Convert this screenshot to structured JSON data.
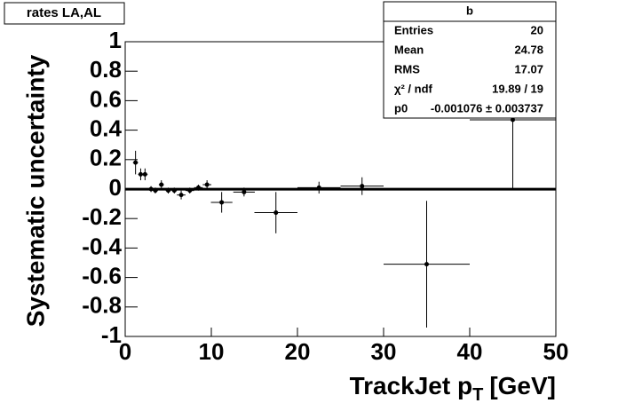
{
  "chart_data": {
    "type": "errorbar",
    "title": "rates LA,AL",
    "y_label": "Systematic uncertainty",
    "x_label": {
      "main": "TrackJet p",
      "sub": "T",
      "unit": "[GeV]"
    },
    "x": [
      1.2,
      1.8,
      2.3,
      3,
      3.5,
      4.2,
      5,
      5.7,
      6.5,
      7.5,
      8.5,
      9.5,
      11.2,
      13.8,
      17.5,
      22.5,
      27.5,
      35,
      45
    ],
    "values": [
      0.18,
      0.1,
      0.1,
      0.0,
      -0.01,
      0.03,
      -0.01,
      -0.01,
      -0.04,
      -0.01,
      0.01,
      0.03,
      -0.09,
      -0.02,
      -0.16,
      0.01,
      0.02,
      -0.51,
      0.47
    ],
    "xerr": [
      0.3,
      0.3,
      0.3,
      0.3,
      0.3,
      0.3,
      0.3,
      0.3,
      0.5,
      0.5,
      0.5,
      0.5,
      1.25,
      1.25,
      2.5,
      2.5,
      2.5,
      5,
      5
    ],
    "yerr": [
      0.08,
      0.04,
      0.04,
      0.02,
      0.02,
      0.03,
      0.02,
      0.02,
      0.03,
      0.02,
      0.02,
      0.03,
      0.07,
      0.03,
      0.14,
      0.04,
      0.06,
      0.43,
      0.47
    ],
    "color": "#000000",
    "xlim": [
      0,
      50
    ],
    "ylim": [
      -1,
      1
    ],
    "xticks": [
      0,
      10,
      20,
      30,
      40,
      50
    ],
    "yticks": [
      -1,
      -0.8,
      -0.6,
      -0.4,
      -0.2,
      0,
      0.2,
      0.4,
      0.6,
      0.8,
      1
    ],
    "stats": {
      "title": "b",
      "rows": [
        {
          "name": "Entries",
          "value": 20
        },
        {
          "name": "Mean",
          "value": 24.78
        },
        {
          "name": "RMS",
          "value": 17.07
        },
        {
          "name": "χ² / ndf",
          "value": "19.89 / 19"
        },
        {
          "name": "p0",
          "value": {
            "value": -0.001076,
            "label": "-0.001076 ± 0.003737"
          }
        }
      ]
    }
  }
}
